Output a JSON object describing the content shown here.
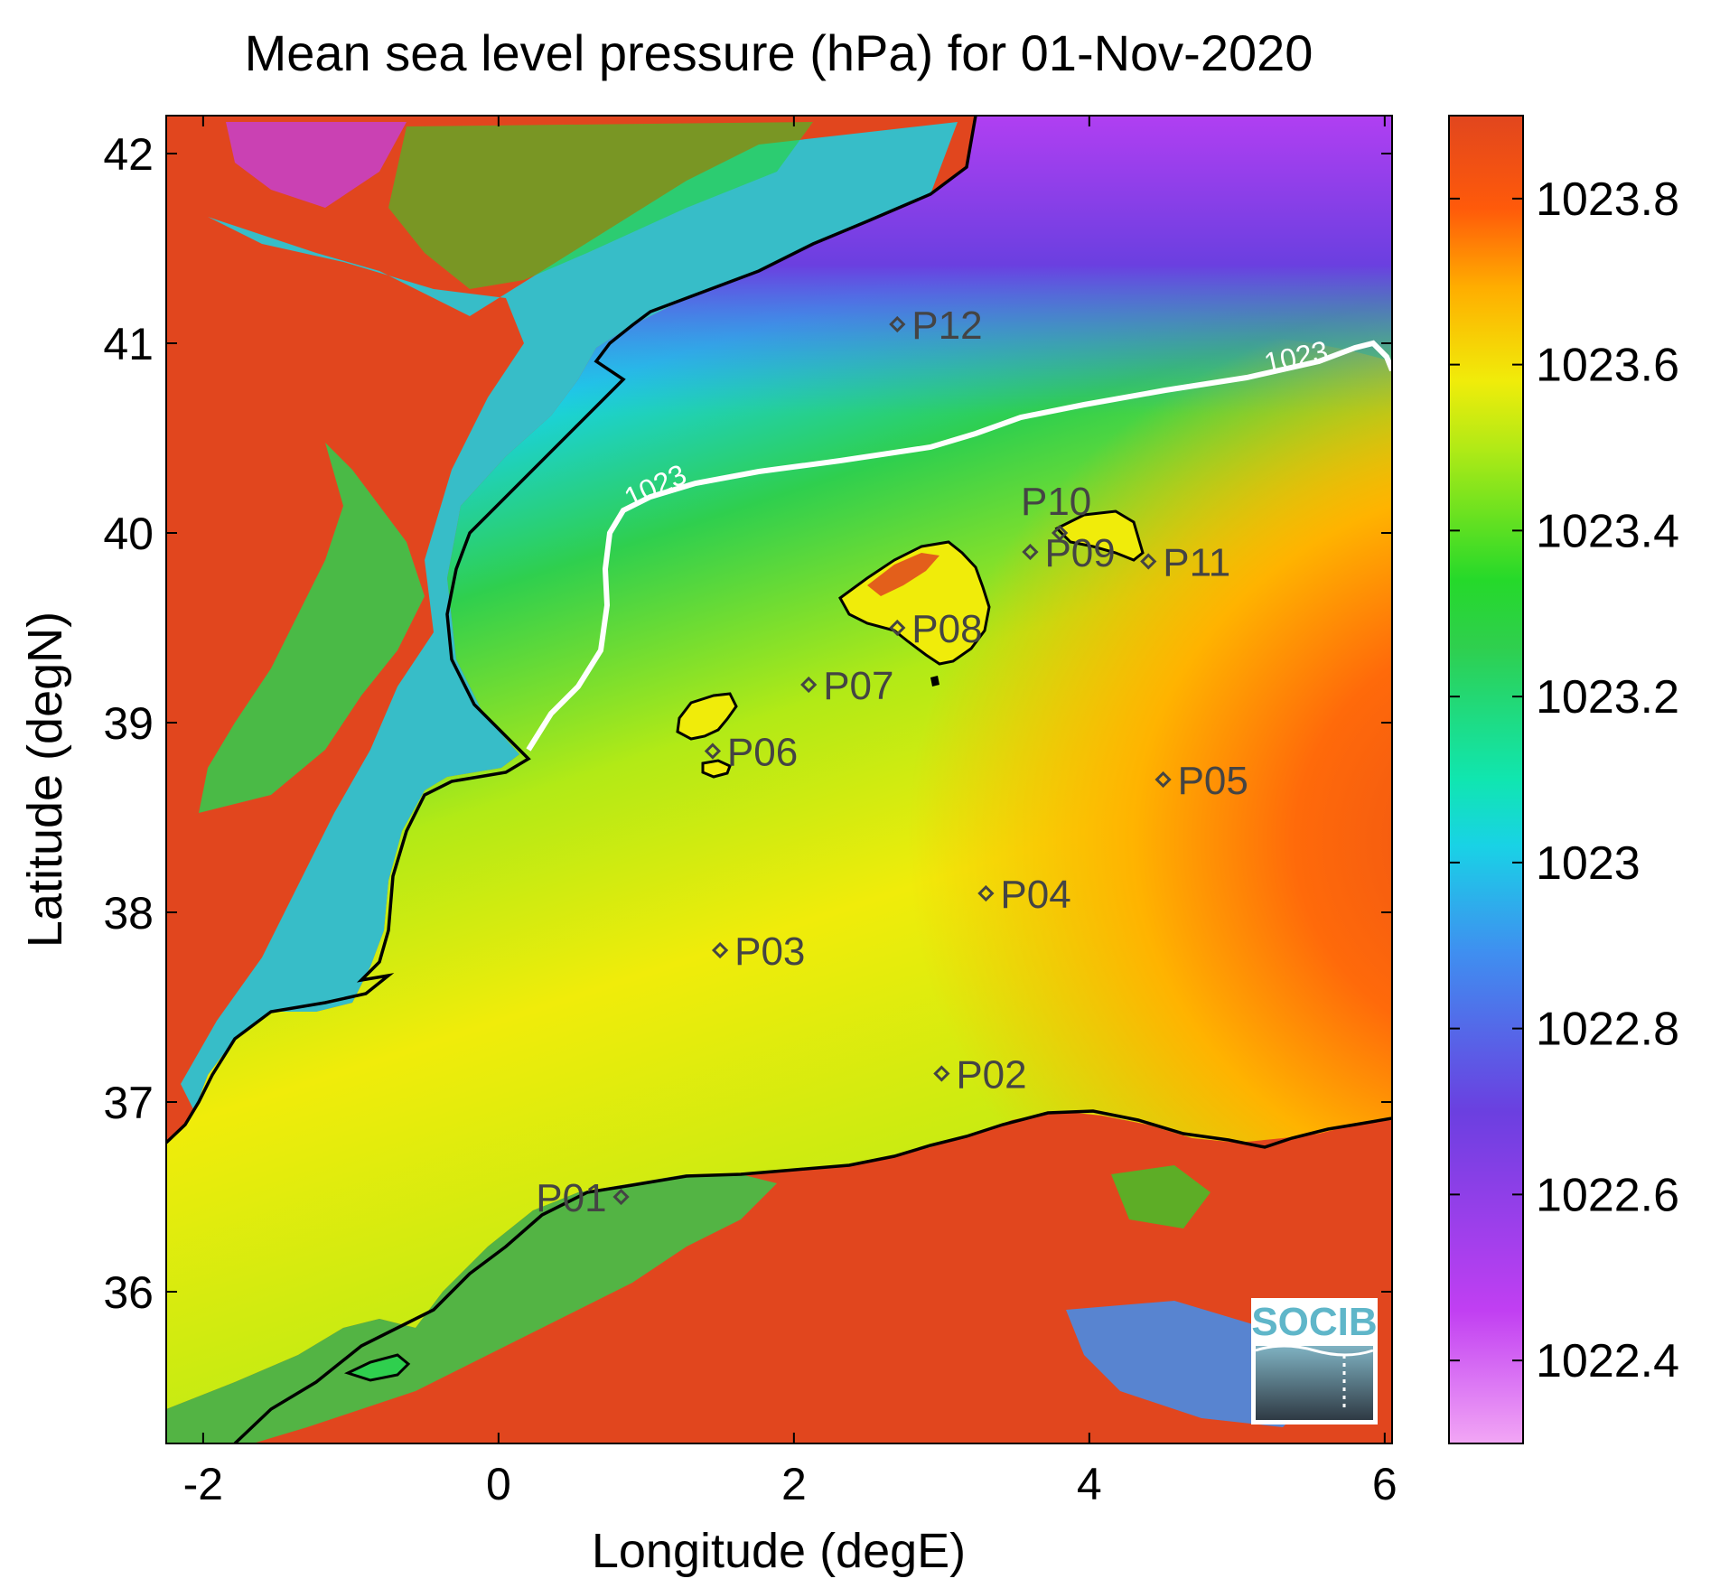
{
  "title": "Mean sea level pressure (hPa) for 01-Nov-2020",
  "xlabel": "Longitude (degE)",
  "ylabel": "Latitude (degN)",
  "x_ticks": [
    "-2",
    "0",
    "2",
    "4",
    "6"
  ],
  "y_ticks": [
    "36",
    "37",
    "38",
    "39",
    "40",
    "41",
    "42"
  ],
  "colorbar_ticks": [
    "1022.4",
    "1022.6",
    "1022.8",
    "1023",
    "1023.2",
    "1023.4",
    "1023.6",
    "1023.8"
  ],
  "contour_label": "1023",
  "logo": "SOCIB",
  "colors": {
    "land": "#e1461e",
    "coast": "#000000",
    "contour": "#ffffff",
    "station": "#444444"
  },
  "chart_data": {
    "type": "heatmap",
    "title": "Mean sea level pressure (hPa) for 01-Nov-2020",
    "xlabel": "Longitude (degE)",
    "ylabel": "Latitude (degN)",
    "xlim": [
      -2.25,
      6.05
    ],
    "ylim": [
      35.2,
      42.2
    ],
    "colorbar": {
      "min": 1022.3,
      "max": 1023.9,
      "ticks": [
        1022.4,
        1022.6,
        1022.8,
        1023.0,
        1023.2,
        1023.4,
        1023.6,
        1023.8
      ]
    },
    "contour_level": 1023,
    "stations": [
      {
        "name": "P01",
        "lon": 0.83,
        "lat": 36.5
      },
      {
        "name": "P02",
        "lon": 3.0,
        "lat": 37.15
      },
      {
        "name": "P03",
        "lon": 1.5,
        "lat": 37.8
      },
      {
        "name": "P04",
        "lon": 3.3,
        "lat": 38.1
      },
      {
        "name": "P05",
        "lon": 4.5,
        "lat": 38.7
      },
      {
        "name": "P06",
        "lon": 1.45,
        "lat": 38.85
      },
      {
        "name": "P07",
        "lon": 2.1,
        "lat": 39.2
      },
      {
        "name": "P08",
        "lon": 2.7,
        "lat": 39.5
      },
      {
        "name": "P09",
        "lon": 3.6,
        "lat": 39.9
      },
      {
        "name": "P10",
        "lon": 3.8,
        "lat": 40.0
      },
      {
        "name": "P11",
        "lon": 4.4,
        "lat": 39.85
      },
      {
        "name": "P12",
        "lon": 2.7,
        "lat": 41.1
      }
    ]
  }
}
